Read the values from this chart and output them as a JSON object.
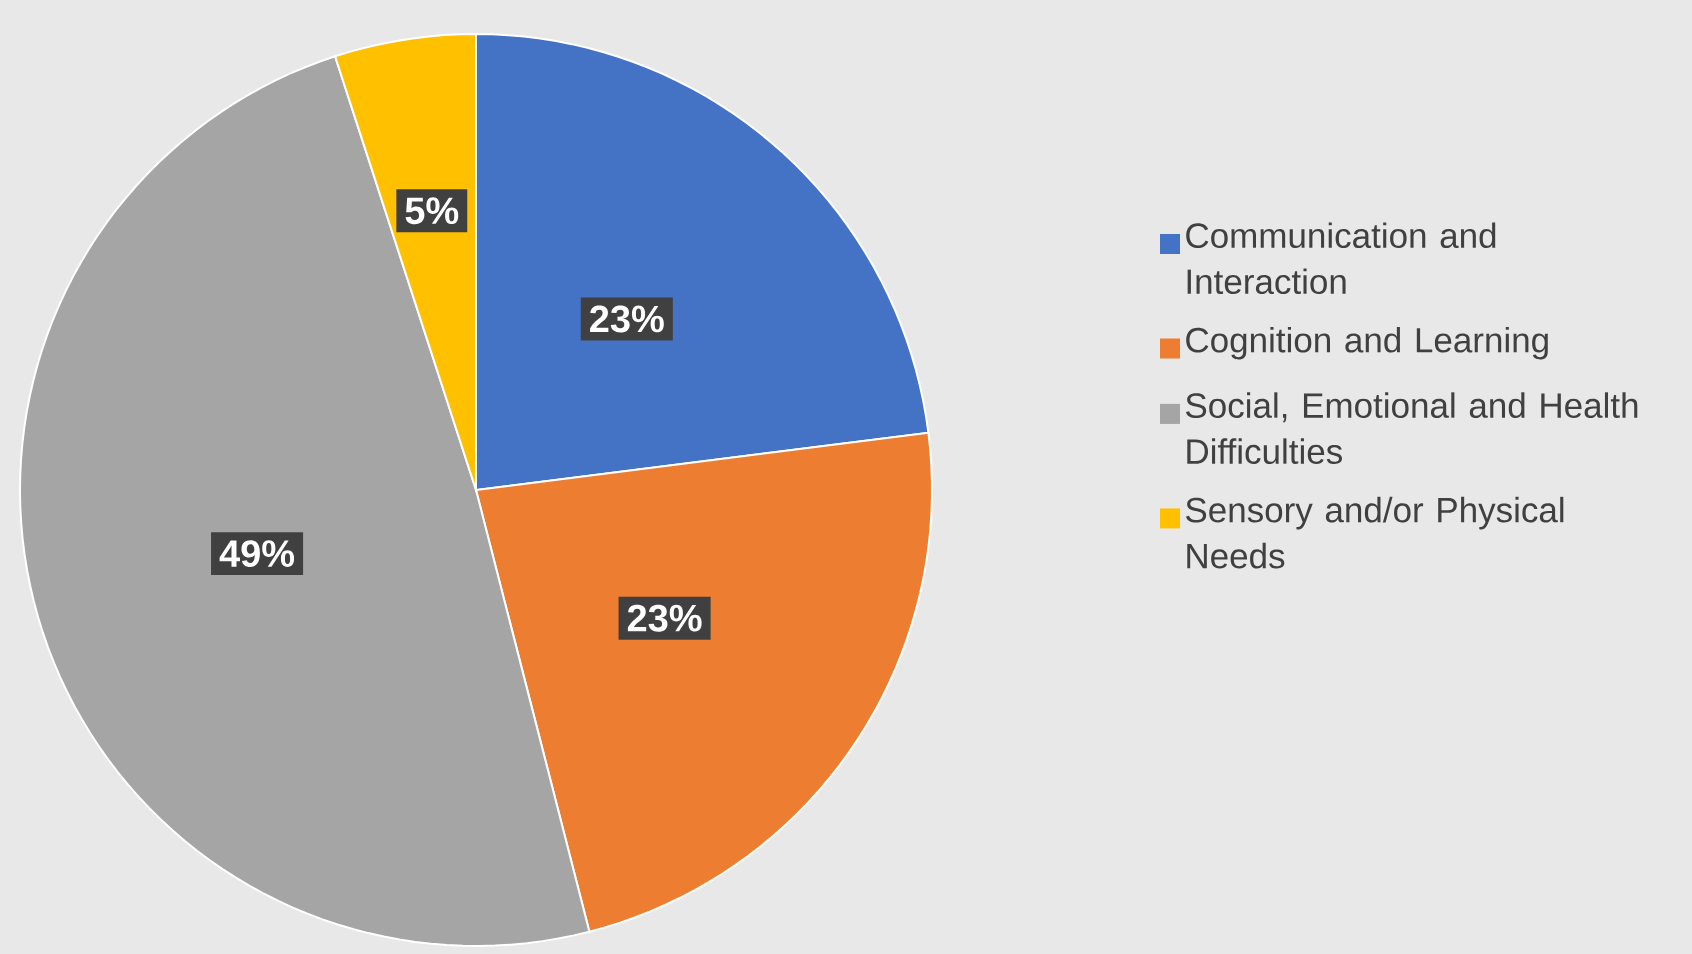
{
  "chart_data": {
    "type": "pie",
    "categories": [
      "Communication and Interaction",
      "Cognition and Learning",
      "Social, Emotional and Health Difficulties",
      "Sensory and/or Physical Needs"
    ],
    "values": [
      23,
      23,
      49,
      5
    ],
    "colors": [
      "#4472c4",
      "#ed7d31",
      "#a5a5a5",
      "#ffc000"
    ],
    "value_labels": [
      "23%",
      "23%",
      "49%",
      "5%"
    ],
    "legend": "right"
  }
}
